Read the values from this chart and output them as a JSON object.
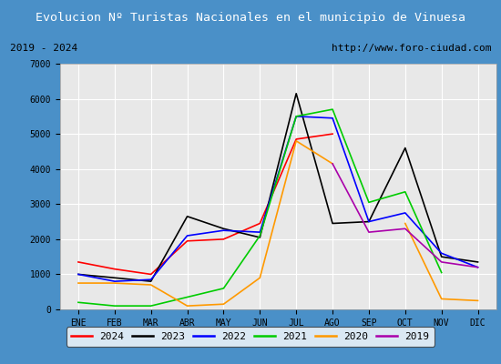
{
  "title": "Evolucion Nº Turistas Nacionales en el municipio de Vinuesa",
  "subtitle_left": "2019 - 2024",
  "subtitle_right": "http://www.foro-ciudad.com",
  "ylim": [
    0,
    7000
  ],
  "months": [
    "ENE",
    "FEB",
    "MAR",
    "ABR",
    "MAY",
    "JUN",
    "JUL",
    "AGO",
    "SEP",
    "OCT",
    "NOV",
    "DIC"
  ],
  "series": {
    "2024": {
      "color": "#ff0000",
      "data": [
        1350,
        1150,
        1000,
        1950,
        2000,
        2450,
        4850,
        5000,
        null,
        null,
        null,
        null
      ]
    },
    "2023": {
      "color": "#000000",
      "data": [
        1000,
        900,
        800,
        2650,
        2300,
        2050,
        6150,
        2450,
        2500,
        4600,
        1500,
        1350
      ]
    },
    "2022": {
      "color": "#0000ff",
      "data": [
        1000,
        800,
        850,
        2100,
        2250,
        2200,
        5500,
        5450,
        2500,
        2750,
        1600,
        1200
      ]
    },
    "2021": {
      "color": "#00cc00",
      "data": [
        200,
        100,
        100,
        350,
        600,
        2100,
        5500,
        5700,
        3050,
        3350,
        1050,
        null
      ]
    },
    "2020": {
      "color": "#ff9900",
      "data": [
        750,
        750,
        700,
        100,
        150,
        900,
        4800,
        4150,
        null,
        2450,
        300,
        250
      ]
    },
    "2019": {
      "color": "#aa00aa",
      "data": [
        null,
        null,
        null,
        null,
        null,
        null,
        null,
        4150,
        2200,
        2300,
        1350,
        1200
      ]
    }
  },
  "title_bg_color": "#4a90c8",
  "title_text_color": "#ffffff",
  "plot_bg_color": "#e8e8e8",
  "subtitle_bg_color": "#e0e0e0",
  "grid_color": "#ffffff",
  "outer_bg_color": "#4a90c8"
}
